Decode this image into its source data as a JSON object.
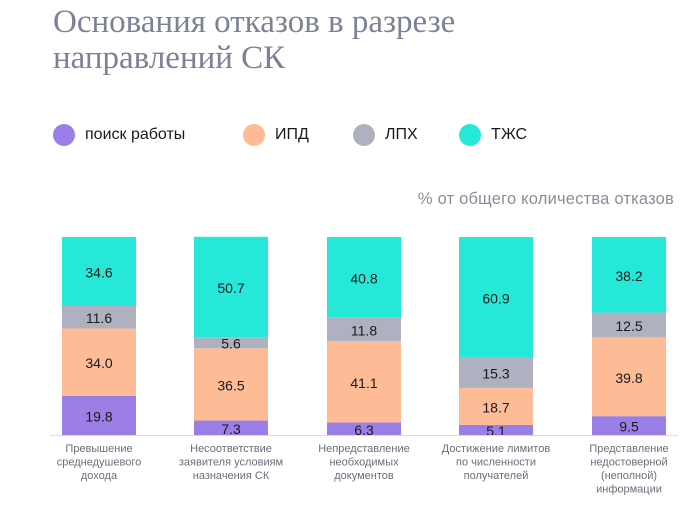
{
  "title": "Основания отказов в разрезе направлений СК",
  "unit_label": "% от общего количества отказов",
  "colors": {
    "search": "#9b7fe6",
    "ipd": "#fdbb96",
    "lph": "#afb1c0",
    "tjs": "#25e8d9",
    "baseline": "#d9dbe3"
  },
  "chart_data": {
    "type": "bar",
    "stacked": true,
    "ylim": [
      0,
      100
    ],
    "legend_position": "top-left",
    "categories": [
      [
        "Превышение",
        "среднедушевого",
        "дохода"
      ],
      [
        "Несоответствие",
        "заявителя условиям",
        "назначения СК"
      ],
      [
        "Непредставление",
        "необходимых",
        "документов"
      ],
      [
        "Достижение лимитов",
        "по численности",
        "получателей"
      ],
      [
        "Представление",
        "недостоверной",
        "(неполной)",
        "информации"
      ]
    ],
    "series": [
      {
        "name": "поиск работы",
        "color_key": "search",
        "values": [
          19.8,
          7.3,
          6.3,
          5.1,
          9.5
        ]
      },
      {
        "name": "ИПД",
        "color_key": "ipd",
        "values": [
          34.0,
          36.5,
          41.1,
          18.7,
          39.8
        ]
      },
      {
        "name": "ЛПХ",
        "color_key": "lph",
        "values": [
          11.6,
          5.6,
          11.8,
          15.3,
          12.5
        ]
      },
      {
        "name": "ТЖС",
        "color_key": "tjs",
        "values": [
          34.6,
          50.7,
          40.8,
          60.9,
          38.2
        ]
      }
    ]
  }
}
